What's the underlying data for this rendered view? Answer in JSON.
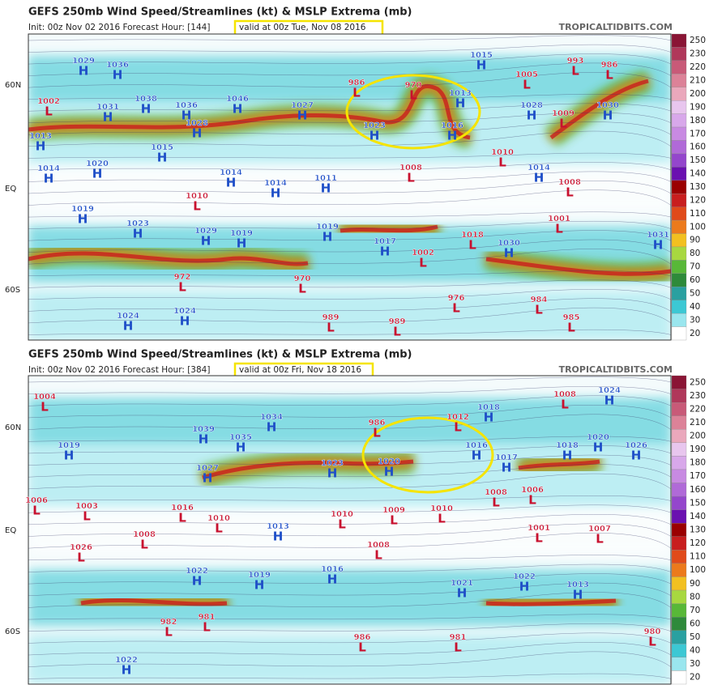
{
  "panels": [
    {
      "title": "GEFS 250mb Wind Speed/Streamlines (kt) & MSLP Extrema (mb)",
      "init": "Init: 00z Nov 02 2016   Forecast Hour: [144]",
      "valid": "valid at 00z Tue, Nov 08 2016",
      "site": "TROPICALTIDBITS.COM",
      "lat_labels": [
        "60N",
        "EQ",
        "60S"
      ],
      "colorbar": [
        250,
        230,
        220,
        210,
        200,
        190,
        180,
        170,
        160,
        150,
        140,
        130,
        120,
        110,
        100,
        90,
        80,
        70,
        60,
        50,
        40,
        30,
        20
      ],
      "systems": [
        {
          "type": "H",
          "value": 1029
        },
        {
          "type": "H",
          "value": 1036
        },
        {
          "type": "L",
          "value": 1002
        },
        {
          "type": "H",
          "value": 1031
        },
        {
          "type": "H",
          "value": 1038
        },
        {
          "type": "H",
          "value": 1036
        },
        {
          "type": "H",
          "value": 1046
        },
        {
          "type": "H",
          "value": 1027
        },
        {
          "type": "L",
          "value": 986
        },
        {
          "type": "L",
          "value": 970
        },
        {
          "type": "H",
          "value": 1023
        },
        {
          "type": "H",
          "value": 1013
        },
        {
          "type": "H",
          "value": 1016
        },
        {
          "type": "H",
          "value": 1015
        },
        {
          "type": "L",
          "value": 1005
        },
        {
          "type": "L",
          "value": 993
        },
        {
          "type": "L",
          "value": 986
        },
        {
          "type": "H",
          "value": 1028
        },
        {
          "type": "L",
          "value": 1009
        },
        {
          "type": "H",
          "value": 1030
        },
        {
          "type": "H",
          "value": 1013
        },
        {
          "type": "H",
          "value": 1028
        },
        {
          "type": "H",
          "value": 1015
        },
        {
          "type": "H",
          "value": 1014
        },
        {
          "type": "H",
          "value": 1020
        },
        {
          "type": "H",
          "value": 1014
        },
        {
          "type": "H",
          "value": 1014
        },
        {
          "type": "H",
          "value": 1011
        },
        {
          "type": "L",
          "value": 1008
        },
        {
          "type": "L",
          "value": 1010
        },
        {
          "type": "H",
          "value": 1014
        },
        {
          "type": "L",
          "value": 1008
        },
        {
          "type": "L",
          "value": 1010
        },
        {
          "type": "H",
          "value": 1019
        },
        {
          "type": "H",
          "value": 1023
        },
        {
          "type": "H",
          "value": 1029
        },
        {
          "type": "H",
          "value": 1019
        },
        {
          "type": "H",
          "value": 1019
        },
        {
          "type": "H",
          "value": 1017
        },
        {
          "type": "L",
          "value": 1018
        },
        {
          "type": "H",
          "value": 1030
        },
        {
          "type": "L",
          "value": 1002
        },
        {
          "type": "L",
          "value": 1001
        },
        {
          "type": "H",
          "value": 1031
        },
        {
          "type": "L",
          "value": 972
        },
        {
          "type": "L",
          "value": 970
        },
        {
          "type": "L",
          "value": 976
        },
        {
          "type": "L",
          "value": 984
        },
        {
          "type": "L",
          "value": 985
        },
        {
          "type": "H",
          "value": 1024
        },
        {
          "type": "H",
          "value": 1024
        },
        {
          "type": "L",
          "value": 989
        },
        {
          "type": "L",
          "value": 989
        }
      ]
    },
    {
      "title": "GEFS 250mb Wind Speed/Streamlines (kt) & MSLP Extrema (mb)",
      "init": "Init: 00z Nov 02 2016   Forecast Hour: [384]",
      "valid": "valid at 00z Fri, Nov 18 2016",
      "site": "TROPICALTIDBITS.COM",
      "lat_labels": [
        "60N",
        "EQ",
        "60S"
      ],
      "colorbar": [
        250,
        230,
        220,
        210,
        200,
        190,
        180,
        170,
        160,
        150,
        140,
        130,
        120,
        110,
        100,
        90,
        80,
        70,
        60,
        50,
        40,
        30,
        20
      ],
      "systems": [
        {
          "type": "L",
          "value": 1004
        },
        {
          "type": "H",
          "value": 1034
        },
        {
          "type": "H",
          "value": 1039
        },
        {
          "type": "H",
          "value": 1035
        },
        {
          "type": "L",
          "value": 986
        },
        {
          "type": "L",
          "value": 1012
        },
        {
          "type": "H",
          "value": 1018
        },
        {
          "type": "L",
          "value": 1008
        },
        {
          "type": "H",
          "value": 1024
        },
        {
          "type": "H",
          "value": 1019
        },
        {
          "type": "H",
          "value": 1027
        },
        {
          "type": "H",
          "value": 1023
        },
        {
          "type": "H",
          "value": 1020
        },
        {
          "type": "H",
          "value": 1016
        },
        {
          "type": "H",
          "value": 1017
        },
        {
          "type": "H",
          "value": 1018
        },
        {
          "type": "H",
          "value": 1020
        },
        {
          "type": "H",
          "value": 1026
        },
        {
          "type": "L",
          "value": 1006
        },
        {
          "type": "L",
          "value": 1003
        },
        {
          "type": "L",
          "value": 1016
        },
        {
          "type": "L",
          "value": 1010
        },
        {
          "type": "H",
          "value": 1013
        },
        {
          "type": "L",
          "value": 1010
        },
        {
          "type": "L",
          "value": 1009
        },
        {
          "type": "L",
          "value": 1010
        },
        {
          "type": "L",
          "value": 1008
        },
        {
          "type": "L",
          "value": 1006
        },
        {
          "type": "L",
          "value": 1001
        },
        {
          "type": "L",
          "value": 1007
        },
        {
          "type": "L",
          "value": 1008
        },
        {
          "type": "L",
          "value": 1008
        },
        {
          "type": "L",
          "value": 1026
        },
        {
          "type": "H",
          "value": 1022
        },
        {
          "type": "H",
          "value": 1019
        },
        {
          "type": "H",
          "value": 1016
        },
        {
          "type": "H",
          "value": 1021
        },
        {
          "type": "H",
          "value": 1022
        },
        {
          "type": "H",
          "value": 1013
        },
        {
          "type": "L",
          "value": 982
        },
        {
          "type": "L",
          "value": 981
        },
        {
          "type": "L",
          "value": 986
        },
        {
          "type": "L",
          "value": 981
        },
        {
          "type": "L",
          "value": 980
        },
        {
          "type": "H",
          "value": 1022
        }
      ]
    }
  ]
}
